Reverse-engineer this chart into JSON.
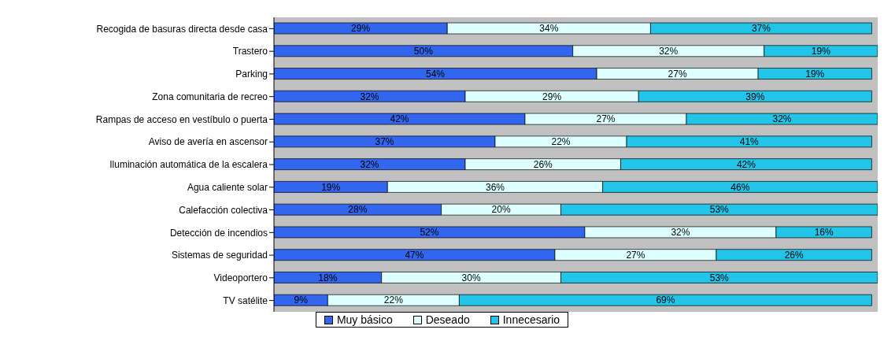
{
  "chart_data": {
    "type": "bar",
    "orientation": "horizontal",
    "stacked": true,
    "legend": "bottom",
    "grid": false,
    "categories": [
      "Recogida de basuras directa desde casa",
      "Trastero",
      "Parking",
      "Zona comunitaria de recreo",
      "Rampas de acceso en vestíbulo o puerta",
      "Aviso de avería en ascensor",
      "Iluminación automática de la escalera",
      "Agua caliente solar",
      "Calefacción colectiva",
      "Detección de incendios",
      "Sistemas de seguridad",
      "Videoportero",
      "TV satélite"
    ],
    "series": [
      {
        "name": "Muy básico",
        "color": "#3366ee",
        "values": [
          29,
          50,
          54,
          32,
          42,
          37,
          32,
          19,
          28,
          52,
          47,
          18,
          9
        ],
        "value_labels": [
          "29%",
          "50%",
          "54%",
          "32%",
          "42%",
          "37%",
          "32%",
          "19%",
          "28%",
          "52%",
          "47%",
          "18%",
          "9%"
        ]
      },
      {
        "name": "Deseado",
        "color": "#ddffff",
        "values": [
          34,
          32,
          27,
          29,
          27,
          22,
          26,
          36,
          20,
          32,
          27,
          30,
          22
        ],
        "value_labels": [
          "34%",
          "32%",
          "27%",
          "29%",
          "27%",
          "22%",
          "26%",
          "36%",
          "20%",
          "32%",
          "27%",
          "30%",
          "22%"
        ]
      },
      {
        "name": "Innecesario",
        "color": "#22c4e8",
        "values": [
          37,
          19,
          19,
          39,
          32,
          41,
          42,
          46,
          53,
          16,
          26,
          53,
          69
        ],
        "value_labels": [
          "37%",
          "19%",
          "19%",
          "39%",
          "32%",
          "41%",
          "42%",
          "46%",
          "53%",
          "16%",
          "26%",
          "53%",
          "69%"
        ]
      }
    ]
  }
}
